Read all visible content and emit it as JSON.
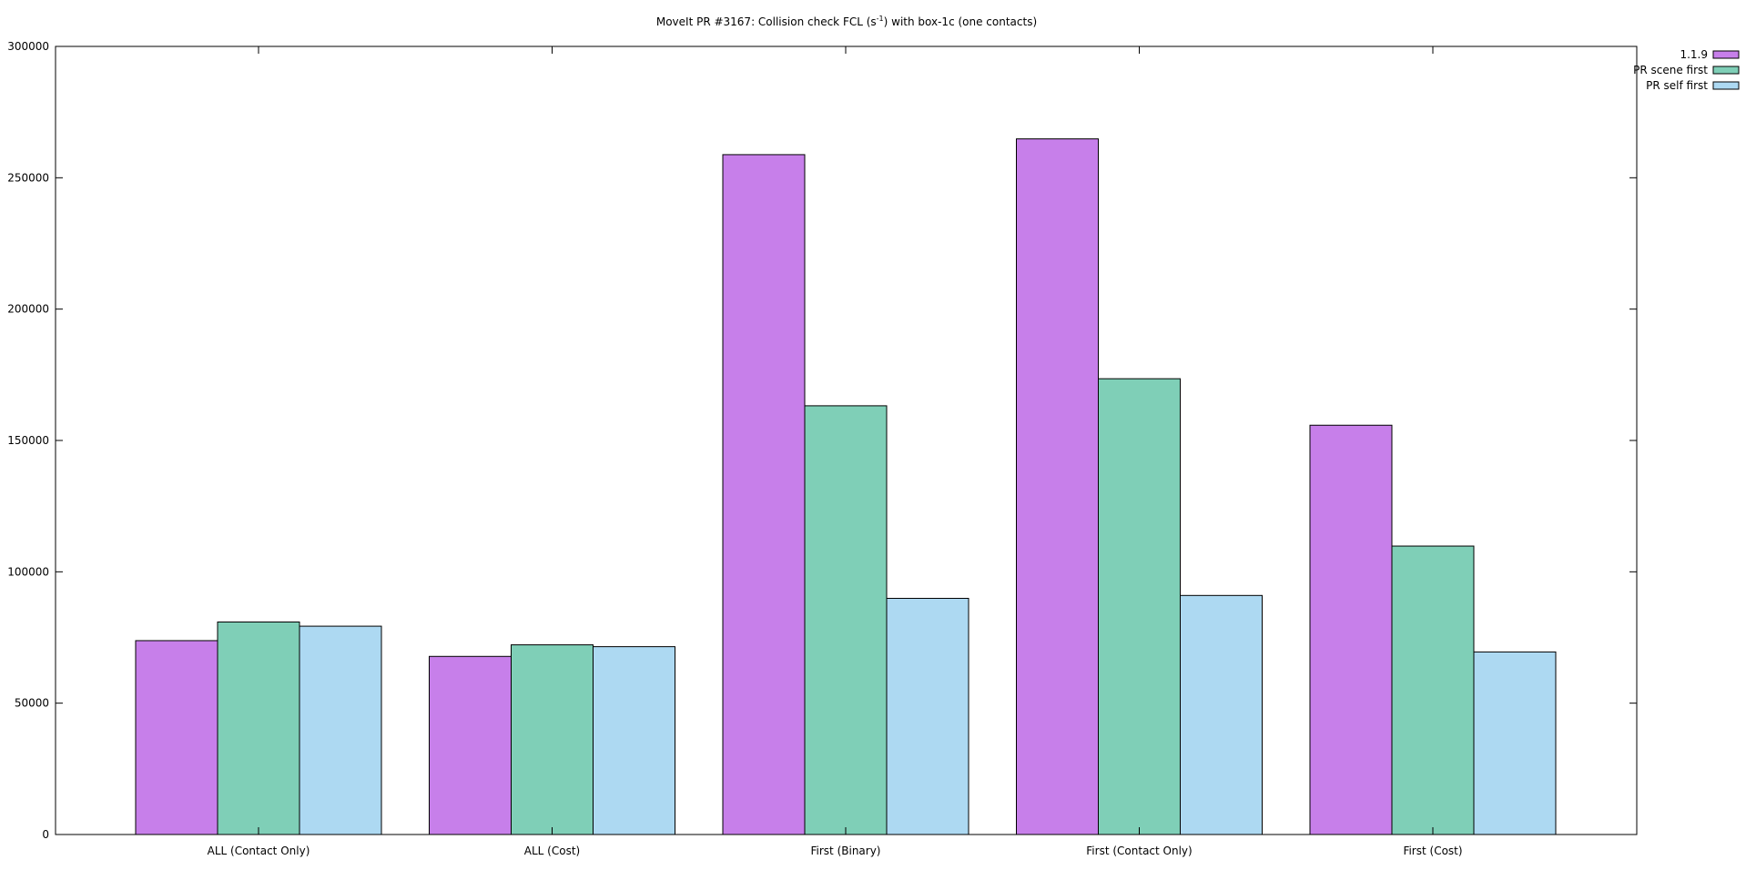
{
  "chart_data": {
    "type": "bar",
    "title": {
      "prefix": "MoveIt PR #3167: Collision check FCL (s",
      "superscript": "-1",
      "suffix": ") with box-1c (one contacts)"
    },
    "xlabel": "",
    "ylabel": "",
    "ylim": [
      0,
      300000
    ],
    "yticks": [
      "0",
      "50000",
      "100000",
      "150000",
      "200000",
      "250000",
      "300000"
    ],
    "categories": [
      "ALL (Contact Only)",
      "ALL (Cost)",
      "First (Binary)",
      "First (Contact Only)",
      "First (Cost)"
    ],
    "series": [
      {
        "name": "1.1.9",
        "color": "#c77fea",
        "values": [
          73800,
          67800,
          258800,
          264800,
          155800
        ]
      },
      {
        "name": "PR scene first",
        "color": "#7fcfb7",
        "values": [
          80900,
          72200,
          163200,
          173500,
          109800
        ]
      },
      {
        "name": "PR self first",
        "color": "#add9f2",
        "values": [
          79300,
          71500,
          89900,
          91000,
          69500
        ]
      }
    ],
    "legend_position": "top-right",
    "grid": false
  }
}
